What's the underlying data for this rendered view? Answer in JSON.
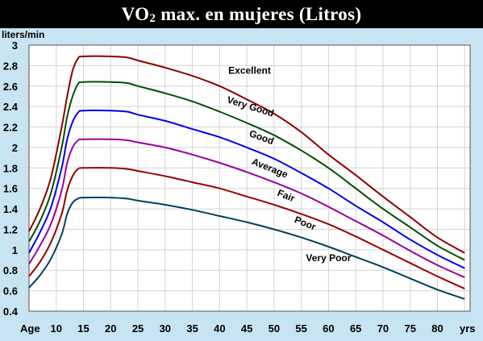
{
  "title": {
    "prefix": "VO",
    "subscript": "2",
    "suffix": " max. en mujeres (Litros)"
  },
  "chart_data": {
    "type": "line",
    "title": "VO2 max. en mujeres (Litros)",
    "ylabel": "liters/min",
    "xlabel_left": "Age",
    "xlabel_right": "yrs",
    "xlim": [
      5,
      86
    ],
    "ylim": [
      0.4,
      3.0
    ],
    "xticks": [
      10,
      15,
      20,
      25,
      30,
      35,
      40,
      45,
      50,
      55,
      60,
      65,
      70,
      75,
      80
    ],
    "yticks": [
      0.4,
      0.6,
      0.8,
      1.0,
      1.2,
      1.4,
      1.6,
      1.8,
      2.0,
      2.2,
      2.4,
      2.6,
      2.8,
      3.0
    ],
    "ytick_labels": [
      "0.4",
      "0.6",
      "0.8",
      "1",
      "1.2",
      "1.4",
      "1.6",
      "1.8",
      "2",
      "2.2",
      "2.4",
      "2.6",
      "2.8",
      "3"
    ],
    "grid": true,
    "series": [
      {
        "name": "Excellent",
        "color": "#8b0000",
        "x": [
          5,
          7,
          9,
          11,
          12,
          13,
          14,
          15,
          20,
          23,
          25,
          30,
          35,
          40,
          45,
          50,
          55,
          60,
          65,
          70,
          75,
          80,
          85
        ],
        "y": [
          1.18,
          1.4,
          1.7,
          2.2,
          2.5,
          2.75,
          2.87,
          2.89,
          2.89,
          2.88,
          2.85,
          2.78,
          2.7,
          2.6,
          2.47,
          2.33,
          2.15,
          1.93,
          1.73,
          1.52,
          1.32,
          1.12,
          0.97
        ],
        "label_x": 45.5,
        "label_y": 2.72,
        "label_angle": 0
      },
      {
        "name": "Very Good",
        "color": "#005000",
        "x": [
          5,
          7,
          9,
          11,
          12,
          13,
          14,
          15,
          20,
          23,
          25,
          30,
          35,
          40,
          45,
          50,
          55,
          60,
          65,
          70,
          75,
          80,
          85
        ],
        "y": [
          1.08,
          1.28,
          1.55,
          2.0,
          2.3,
          2.5,
          2.62,
          2.64,
          2.64,
          2.63,
          2.6,
          2.53,
          2.45,
          2.35,
          2.24,
          2.12,
          1.97,
          1.8,
          1.6,
          1.4,
          1.22,
          1.04,
          0.9
        ],
        "label_x": 45.5,
        "label_y": 2.37,
        "label_angle": 17
      },
      {
        "name": "Good",
        "color": "#0000ee",
        "x": [
          5,
          7,
          9,
          11,
          12,
          13,
          14,
          15,
          20,
          23,
          25,
          30,
          35,
          40,
          45,
          50,
          55,
          60,
          65,
          70,
          75,
          80,
          85
        ],
        "y": [
          0.97,
          1.17,
          1.41,
          1.8,
          2.08,
          2.25,
          2.34,
          2.36,
          2.36,
          2.35,
          2.32,
          2.26,
          2.18,
          2.1,
          2.0,
          1.89,
          1.75,
          1.6,
          1.43,
          1.27,
          1.1,
          0.95,
          0.82
        ],
        "label_x": 47.5,
        "label_y": 2.07,
        "label_angle": 20
      },
      {
        "name": "Average",
        "color": "#990099",
        "x": [
          5,
          7,
          9,
          11,
          12,
          13,
          14,
          15,
          20,
          23,
          25,
          30,
          35,
          40,
          45,
          50,
          55,
          60,
          65,
          70,
          75,
          80,
          85
        ],
        "y": [
          0.86,
          1.04,
          1.25,
          1.58,
          1.85,
          2.0,
          2.07,
          2.08,
          2.08,
          2.07,
          2.05,
          2.0,
          1.93,
          1.85,
          1.76,
          1.66,
          1.55,
          1.42,
          1.28,
          1.14,
          0.99,
          0.85,
          0.73
        ],
        "label_x": 49.0,
        "label_y": 1.77,
        "label_angle": 22
      },
      {
        "name": "Fair",
        "color": "#990000",
        "x": [
          5,
          7,
          9,
          11,
          12,
          13,
          14,
          15,
          20,
          23,
          25,
          30,
          35,
          40,
          45,
          50,
          55,
          60,
          65,
          70,
          75,
          80,
          85
        ],
        "y": [
          0.74,
          0.88,
          1.07,
          1.35,
          1.58,
          1.72,
          1.79,
          1.8,
          1.8,
          1.79,
          1.77,
          1.72,
          1.66,
          1.6,
          1.52,
          1.44,
          1.35,
          1.25,
          1.13,
          1.0,
          0.87,
          0.74,
          0.62
        ],
        "label_x": 52.0,
        "label_y": 1.5,
        "label_angle": 22
      },
      {
        "name": "Poor",
        "color": "#004060",
        "x": [
          5,
          7,
          9,
          11,
          12,
          13,
          14,
          15,
          20,
          23,
          25,
          30,
          35,
          40,
          45,
          50,
          55,
          60,
          65,
          70,
          75,
          80,
          85
        ],
        "y": [
          0.63,
          0.75,
          0.91,
          1.15,
          1.35,
          1.46,
          1.5,
          1.51,
          1.51,
          1.5,
          1.48,
          1.44,
          1.39,
          1.33,
          1.27,
          1.2,
          1.12,
          1.03,
          0.93,
          0.83,
          0.72,
          0.61,
          0.52
        ],
        "label_x": 55.5,
        "label_y": 1.23,
        "label_angle": 22
      }
    ],
    "annotations": [
      {
        "text": "Very Poor",
        "x": 60.0,
        "y": 0.89
      }
    ]
  }
}
